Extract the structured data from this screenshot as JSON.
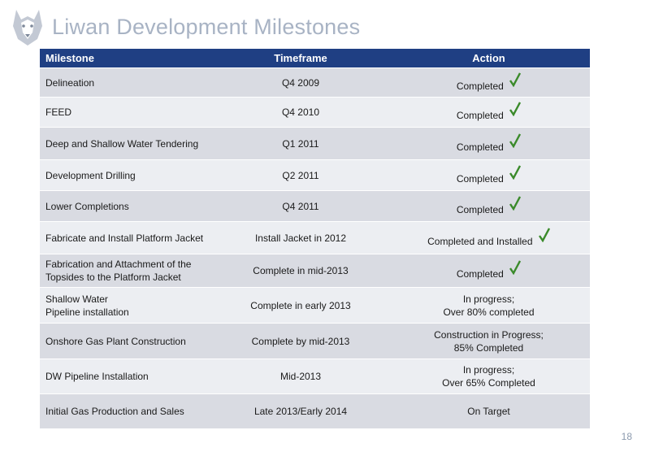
{
  "title": "Liwan Development Milestones",
  "page_number": "18",
  "colors": {
    "header_bg": "#1f3f83",
    "row_dark": "#d9dbe2",
    "row_light": "#eceef2",
    "check": "#3a8a2a"
  },
  "table": {
    "headers": [
      "Milestone",
      "Timeframe",
      "Action"
    ],
    "rows": [
      {
        "milestone": "Delineation",
        "timeframe": "Q4 2009",
        "action": "Completed",
        "check": true
      },
      {
        "milestone": "FEED",
        "timeframe": "Q4 2010",
        "action": "Completed",
        "check": true
      },
      {
        "milestone": "Deep and Shallow Water Tendering",
        "timeframe": "Q1 2011",
        "action": "Completed",
        "check": true
      },
      {
        "milestone": "Development Drilling",
        "timeframe": "Q2 2011",
        "action": "Completed",
        "check": true
      },
      {
        "milestone": "Lower Completions",
        "timeframe": "Q4 2011",
        "action": "Completed",
        "check": true
      },
      {
        "milestone": "Fabricate and Install Platform Jacket",
        "timeframe": "Install Jacket in 2012",
        "action": "Completed and Installed",
        "check": true
      },
      {
        "milestone": "Fabrication and Attachment of the Topsides to the Platform Jacket",
        "timeframe": "Complete in mid-2013",
        "action": "Completed",
        "check": true
      },
      {
        "milestone_lines": [
          "Shallow Water",
          "Pipeline installation"
        ],
        "timeframe": "Complete in early 2013",
        "action_lines": [
          "In progress;",
          "Over 80% completed"
        ],
        "check": false
      },
      {
        "milestone": "Onshore Gas Plant Construction",
        "timeframe": "Complete by mid-2013",
        "action_lines": [
          "Construction in Progress;",
          "85% Completed"
        ],
        "check": false
      },
      {
        "milestone": "DW Pipeline Installation",
        "timeframe": "Mid-2013",
        "action_lines": [
          "In progress;",
          "Over 65% Completed"
        ],
        "check": false
      },
      {
        "milestone": "Initial Gas Production and Sales",
        "timeframe": "Late 2013/Early 2014",
        "action": "On Target",
        "check": false
      }
    ]
  }
}
